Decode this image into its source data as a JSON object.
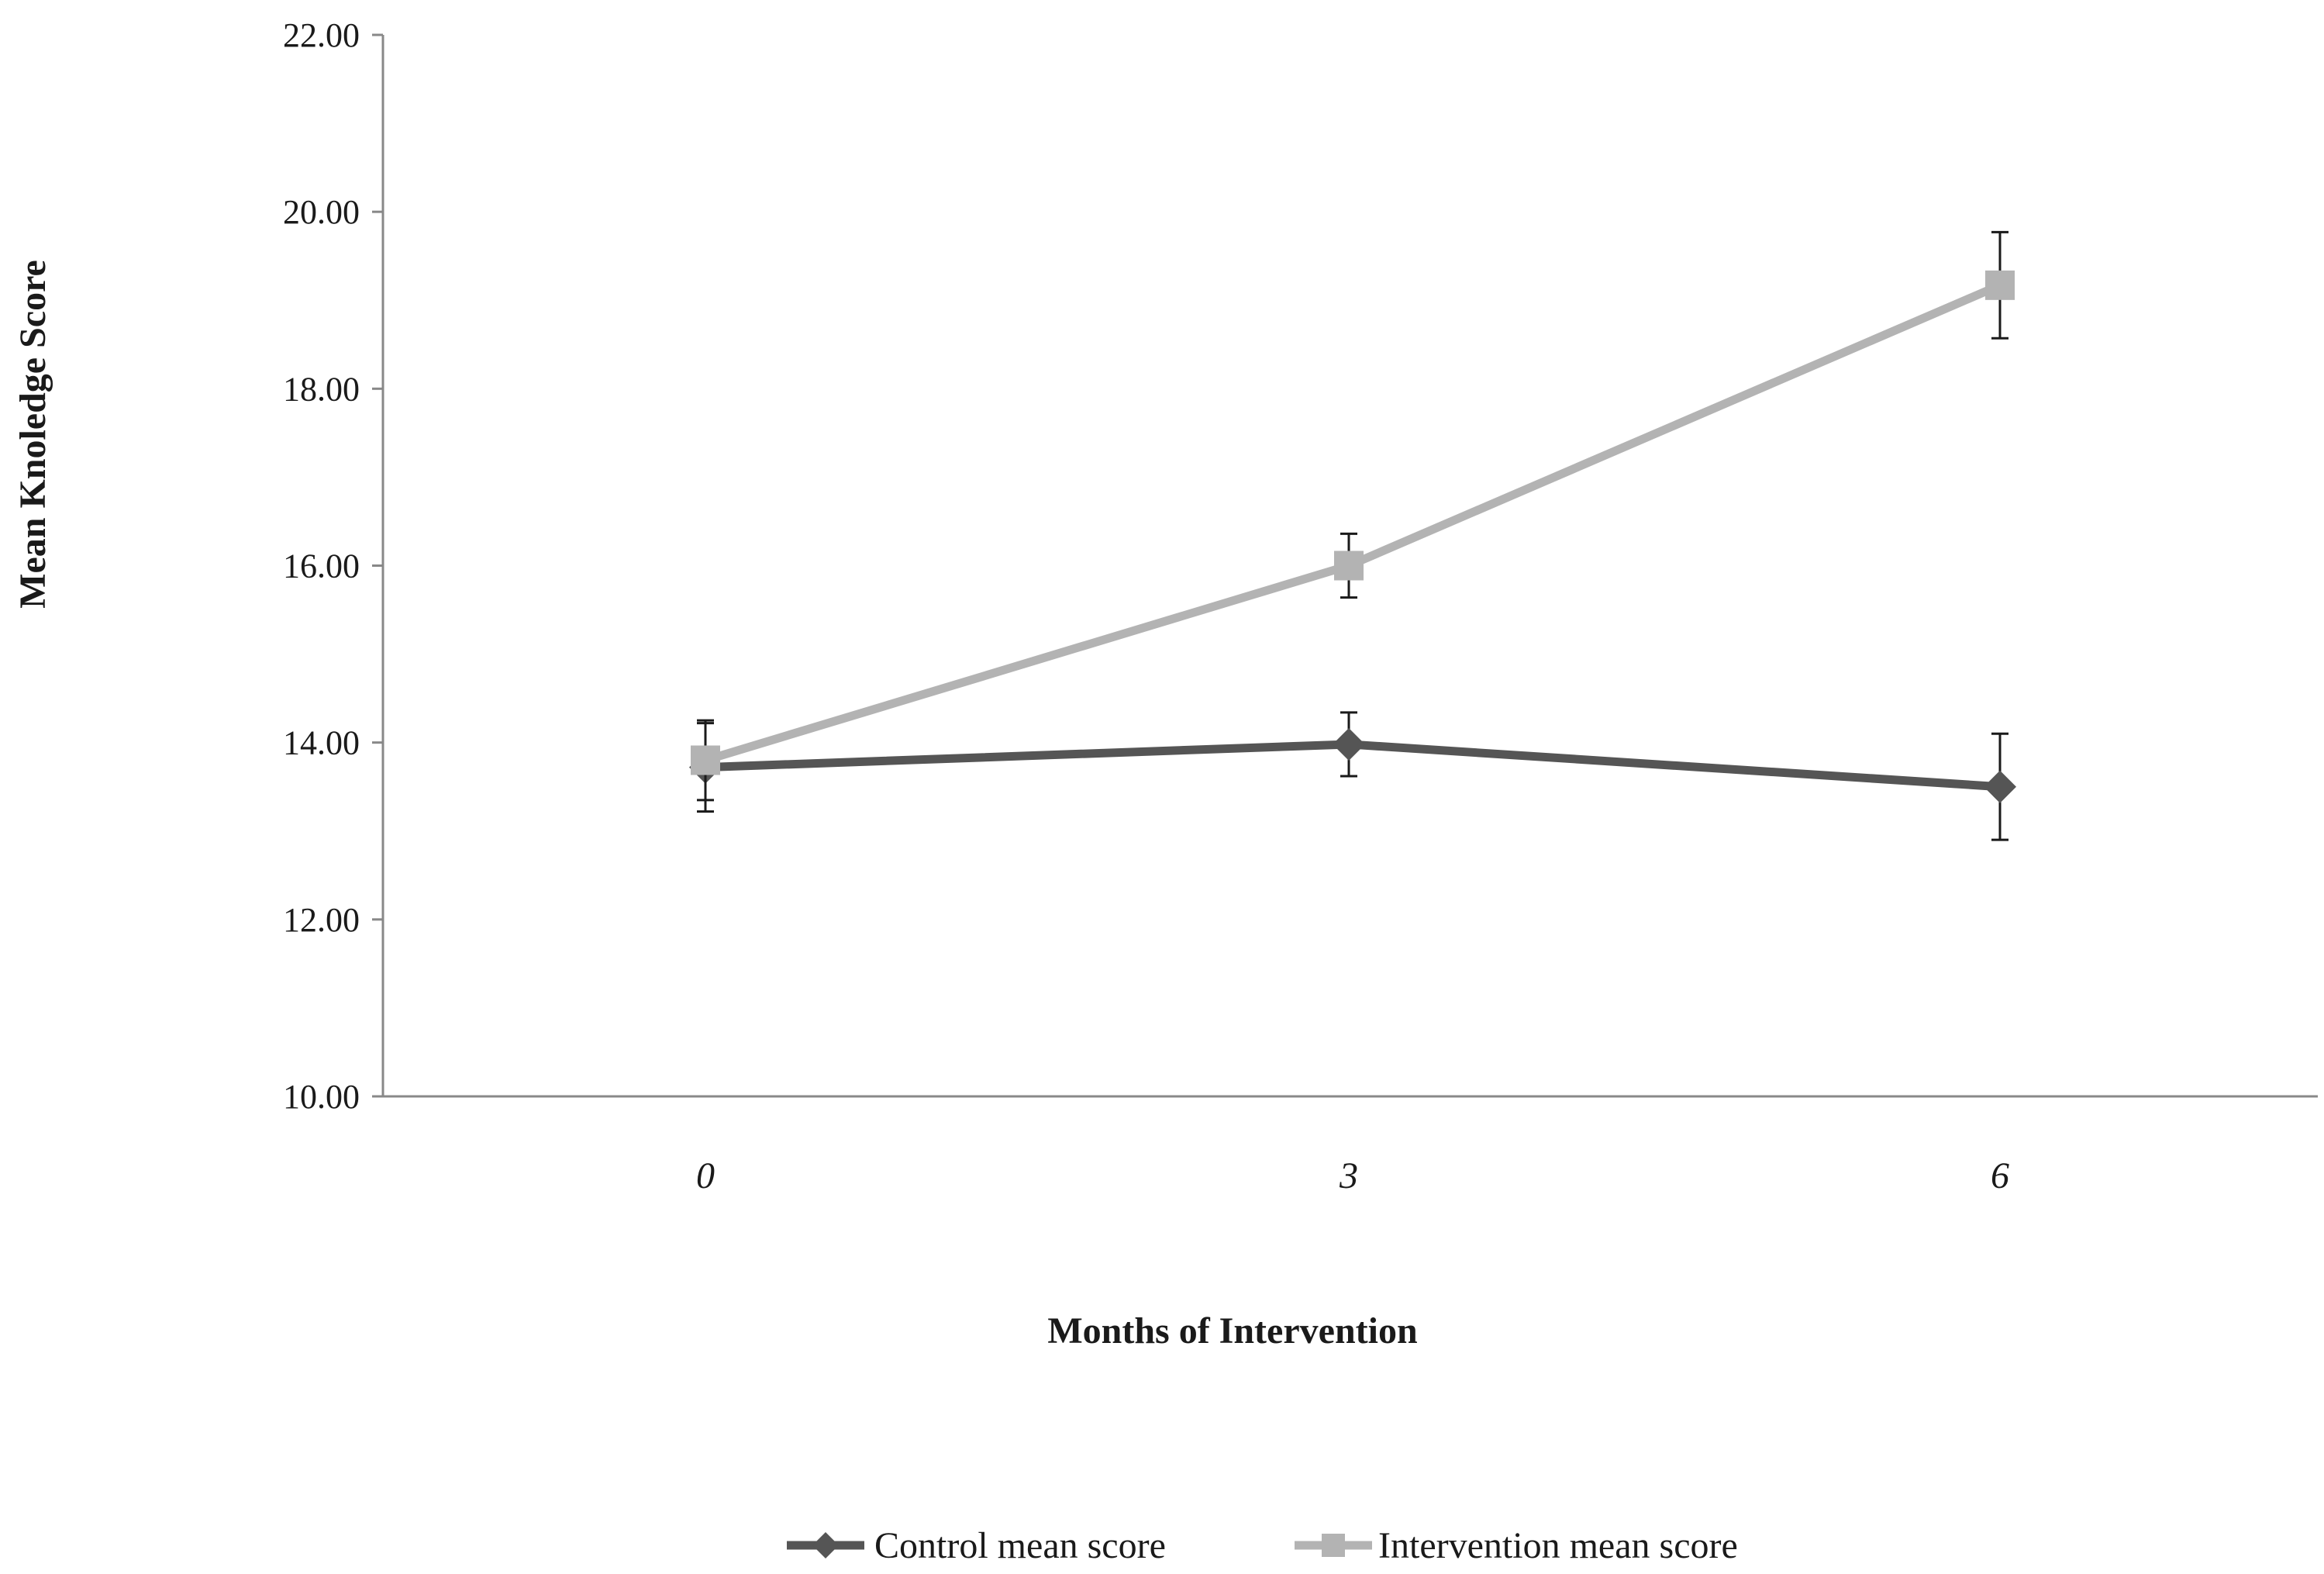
{
  "chart_data": {
    "type": "line",
    "x": [
      0,
      3,
      6
    ],
    "x_tick_labels": [
      "0",
      "3",
      "6"
    ],
    "y_tick_labels": [
      "10.00",
      "12.00",
      "14.00",
      "16.00",
      "18.00",
      "20.00",
      "22.00"
    ],
    "ylim": [
      10,
      22
    ],
    "xlabel": "Months of Intervention",
    "ylabel": "Mean Knoledge Score",
    "grid": false,
    "legend_position": "bottom",
    "series": [
      {
        "name": "Control mean score",
        "values": [
          13.72,
          13.98,
          13.5
        ],
        "error": [
          0.5,
          0.36,
          0.6
        ],
        "marker": "diamond",
        "color": "#555555"
      },
      {
        "name": "Intervention mean score",
        "values": [
          13.8,
          16.0,
          19.17
        ],
        "error": [
          0.45,
          0.36,
          0.6
        ],
        "marker": "square",
        "color": "#b3b3b3"
      }
    ]
  }
}
